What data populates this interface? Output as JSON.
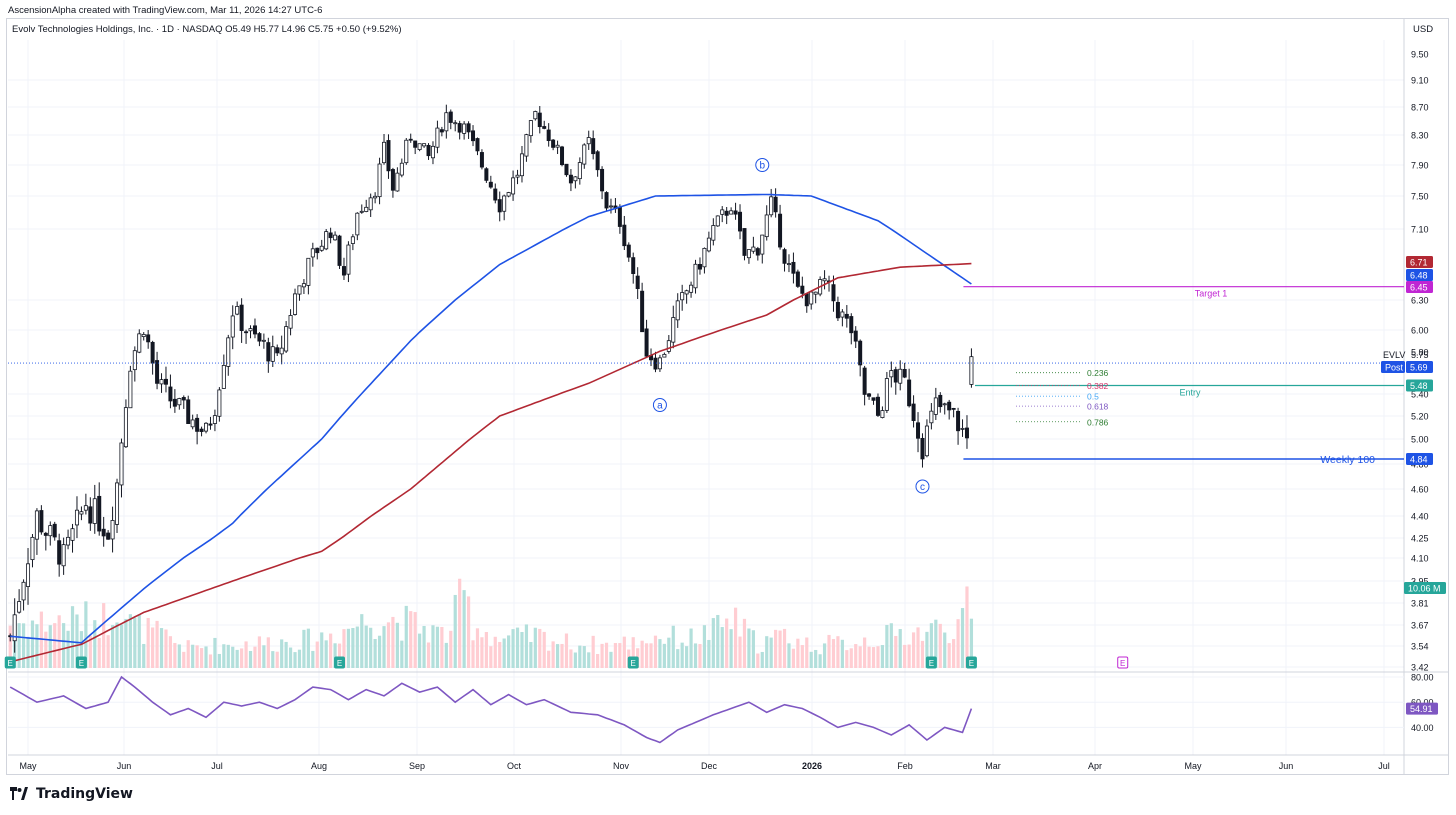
{
  "caption": "AscensionAlpha created with TradingView.com, Mar 11, 2026 14:27 UTC-6",
  "legend": "Evolv Technologies Holdings, Inc. · 1D · NASDAQ  O5.49  H5.77  L4.96  C5.75  +0.50 (+9.52%)",
  "currency": "USD",
  "brand": "TradingView",
  "colors": {
    "up": "#ffffff",
    "down": "#131722",
    "ma_fast": "#1e53e5",
    "ma_slow": "#b22833",
    "rsi": "#7e57c2",
    "target": "#c026d3",
    "entry": "#26a69a",
    "weekly": "#1e53e5",
    "vol_up": "#b2dfdb",
    "vol_down": "#ffcdd2"
  },
  "chart_data": {
    "type": "candlestick",
    "symbol": "EVLV",
    "timeframe": "1D",
    "x_axis": {
      "months": [
        "May",
        "Jun",
        "Jul",
        "Aug",
        "Sep",
        "Oct",
        "Nov",
        "Dec",
        "2026",
        "Feb",
        "Mar",
        "Apr",
        "May",
        "Jun",
        "Jul"
      ]
    },
    "y_axis": {
      "ticks": [
        "9.50",
        "9.10",
        "8.70",
        "8.30",
        "7.90",
        "7.50",
        "7.10",
        "6.30",
        "6.00",
        "5.80",
        "5.40",
        "5.20",
        "5.00",
        "4.80",
        "4.60",
        "4.40",
        "4.25",
        "4.10",
        "3.95",
        "3.81",
        "3.67",
        "3.54",
        "3.42"
      ],
      "range": [
        3.42,
        9.5
      ]
    },
    "price_path": [
      [
        0,
        3.6
      ],
      [
        6,
        4.4
      ],
      [
        12,
        4.1
      ],
      [
        17,
        4.5
      ],
      [
        22,
        4.3
      ],
      [
        24,
        4.65
      ],
      [
        27,
        5.7
      ],
      [
        30,
        6.05
      ],
      [
        33,
        5.5
      ],
      [
        36,
        5.35
      ],
      [
        40,
        5.2
      ],
      [
        44,
        5.05
      ],
      [
        46,
        5.3
      ],
      [
        50,
        6.2
      ],
      [
        54,
        5.95
      ],
      [
        57,
        5.85
      ],
      [
        60,
        5.7
      ],
      [
        64,
        6.35
      ],
      [
        68,
        6.8
      ],
      [
        72,
        7.1
      ],
      [
        75,
        6.6
      ],
      [
        78,
        7.3
      ],
      [
        82,
        7.6
      ],
      [
        84,
        8.1
      ],
      [
        86,
        7.6
      ],
      [
        90,
        8.3
      ],
      [
        94,
        8.0
      ],
      [
        98,
        8.6
      ],
      [
        102,
        8.4
      ],
      [
        106,
        7.9
      ],
      [
        110,
        7.4
      ],
      [
        114,
        7.8
      ],
      [
        118,
        8.6
      ],
      [
        122,
        8.2
      ],
      [
        126,
        7.7
      ],
      [
        130,
        8.2
      ],
      [
        134,
        7.4
      ],
      [
        137,
        7.2
      ],
      [
        140,
        6.6
      ],
      [
        143,
        5.8
      ],
      [
        146,
        5.7
      ],
      [
        150,
        6.2
      ],
      [
        154,
        6.6
      ],
      [
        158,
        7.1
      ],
      [
        162,
        7.4
      ],
      [
        165,
        6.8
      ],
      [
        168,
        6.9
      ],
      [
        171,
        7.4
      ],
      [
        174,
        6.8
      ],
      [
        177,
        6.4
      ],
      [
        180,
        6.3
      ],
      [
        183,
        6.5
      ],
      [
        186,
        6.2
      ],
      [
        189,
        6.0
      ],
      [
        192,
        5.4
      ],
      [
        195,
        5.2
      ],
      [
        198,
        5.6
      ],
      [
        201,
        5.5
      ],
      [
        205,
        4.95
      ],
      [
        208,
        5.3
      ],
      [
        212,
        5.2
      ],
      [
        215,
        5.0
      ],
      [
        216,
        5.75
      ]
    ],
    "volume_path": [
      [
        0,
        0.55
      ],
      [
        17,
        0.6
      ],
      [
        22,
        0.62
      ],
      [
        24,
        0.88
      ],
      [
        27,
        0.55
      ],
      [
        34,
        0.4
      ],
      [
        40,
        0.25
      ],
      [
        46,
        0.28
      ],
      [
        60,
        0.32
      ],
      [
        68,
        0.35
      ],
      [
        74,
        0.45
      ],
      [
        78,
        0.55
      ],
      [
        84,
        0.62
      ],
      [
        90,
        0.55
      ],
      [
        98,
        0.4
      ],
      [
        102,
        0.92
      ],
      [
        104,
        0.55
      ],
      [
        110,
        0.35
      ],
      [
        118,
        0.4
      ],
      [
        126,
        0.3
      ],
      [
        134,
        0.28
      ],
      [
        140,
        0.32
      ],
      [
        146,
        0.4
      ],
      [
        152,
        0.35
      ],
      [
        158,
        0.45
      ],
      [
        162,
        0.6
      ],
      [
        168,
        0.3
      ],
      [
        174,
        0.4
      ],
      [
        180,
        0.28
      ],
      [
        186,
        0.3
      ],
      [
        192,
        0.35
      ],
      [
        198,
        0.4
      ],
      [
        205,
        0.45
      ],
      [
        210,
        0.5
      ],
      [
        214,
        0.55
      ],
      [
        216,
        0.9
      ]
    ],
    "ma_fast_path": [
      [
        0,
        3.6
      ],
      [
        16,
        3.56
      ],
      [
        30,
        3.9
      ],
      [
        50,
        4.35
      ],
      [
        70,
        5.0
      ],
      [
        90,
        5.9
      ],
      [
        110,
        6.7
      ],
      [
        130,
        7.25
      ],
      [
        145,
        7.5
      ],
      [
        170,
        7.52
      ],
      [
        180,
        7.5
      ],
      [
        195,
        7.2
      ],
      [
        216,
        6.48
      ]
    ],
    "ma_slow_path": [
      [
        0,
        3.45
      ],
      [
        16,
        3.55
      ],
      [
        30,
        3.75
      ],
      [
        50,
        3.95
      ],
      [
        70,
        4.15
      ],
      [
        90,
        4.6
      ],
      [
        110,
        5.2
      ],
      [
        130,
        5.5
      ],
      [
        146,
        5.8
      ],
      [
        170,
        6.15
      ],
      [
        186,
        6.55
      ],
      [
        200,
        6.67
      ],
      [
        216,
        6.71
      ]
    ],
    "rsi": {
      "ticks": [
        "80.00",
        "60.00",
        "40.00"
      ],
      "last": "54.91",
      "path": [
        [
          0,
          72
        ],
        [
          6,
          60
        ],
        [
          12,
          65
        ],
        [
          17,
          55
        ],
        [
          22,
          60
        ],
        [
          25,
          80
        ],
        [
          28,
          72
        ],
        [
          32,
          60
        ],
        [
          36,
          50
        ],
        [
          40,
          55
        ],
        [
          44,
          48
        ],
        [
          48,
          60
        ],
        [
          52,
          57
        ],
        [
          56,
          60
        ],
        [
          60,
          55
        ],
        [
          64,
          62
        ],
        [
          68,
          72
        ],
        [
          72,
          70
        ],
        [
          76,
          62
        ],
        [
          80,
          70
        ],
        [
          84,
          65
        ],
        [
          88,
          75
        ],
        [
          92,
          68
        ],
        [
          96,
          72
        ],
        [
          100,
          60
        ],
        [
          104,
          70
        ],
        [
          108,
          58
        ],
        [
          112,
          66
        ],
        [
          116,
          58
        ],
        [
          120,
          62
        ],
        [
          126,
          52
        ],
        [
          132,
          50
        ],
        [
          138,
          42
        ],
        [
          143,
          32
        ],
        [
          146,
          28
        ],
        [
          150,
          38
        ],
        [
          154,
          44
        ],
        [
          158,
          50
        ],
        [
          162,
          55
        ],
        [
          166,
          60
        ],
        [
          170,
          52
        ],
        [
          174,
          58
        ],
        [
          178,
          55
        ],
        [
          182,
          48
        ],
        [
          186,
          40
        ],
        [
          190,
          44
        ],
        [
          194,
          40
        ],
        [
          198,
          34
        ],
        [
          202,
          42
        ],
        [
          206,
          30
        ],
        [
          210,
          40
        ],
        [
          214,
          36
        ],
        [
          216,
          54.91
        ]
      ]
    },
    "price_labels": [
      {
        "text": "6.71",
        "color": "#b22833",
        "price": 6.71
      },
      {
        "text": "6.48",
        "color": "#1e53e5",
        "price": 6.48
      },
      {
        "text": "6.45",
        "color": "#c026d3",
        "price": 6.45
      },
      {
        "text": "5.69",
        "color": "#1e53e5",
        "price": 5.69
      },
      {
        "text": "5.48",
        "color": "#26a69a",
        "price": 5.48
      },
      {
        "text": "4.84",
        "color": "#1e53e5",
        "price": 4.84
      }
    ],
    "price_label_extras": {
      "ticker": "EVLV",
      "last": "5.75",
      "post": "Post",
      "volume": "10.06 M"
    },
    "levels": [
      {
        "name": "Target 1",
        "price": 6.45,
        "color": "#c026d3"
      },
      {
        "name": "Entry",
        "price": 5.48,
        "color": "#26a69a"
      },
      {
        "name": "Weekly 100",
        "price": 4.84,
        "color": "#1e53e5"
      }
    ],
    "fibonacci": [
      {
        "label": "0.236",
        "color": "#2e7d32",
        "price": 5.6
      },
      {
        "label": "0.382",
        "color": "#d6336c",
        "price": 5.48
      },
      {
        "label": "0.5",
        "color": "#42a5f5",
        "price": 5.38
      },
      {
        "label": "0.618",
        "color": "#7e57c2",
        "price": 5.29
      },
      {
        "label": "0.786",
        "color": "#2e7d32",
        "price": 5.15
      }
    ],
    "waves": [
      {
        "label": "a",
        "bar": 146,
        "price": 5.3
      },
      {
        "label": "b",
        "bar": 169,
        "price": 7.9
      },
      {
        "label": "c",
        "bar": 205,
        "price": 4.62
      }
    ],
    "earnings_bars": [
      0,
      16,
      74,
      140,
      207,
      216,
      250
    ],
    "earnings_label": "E"
  }
}
